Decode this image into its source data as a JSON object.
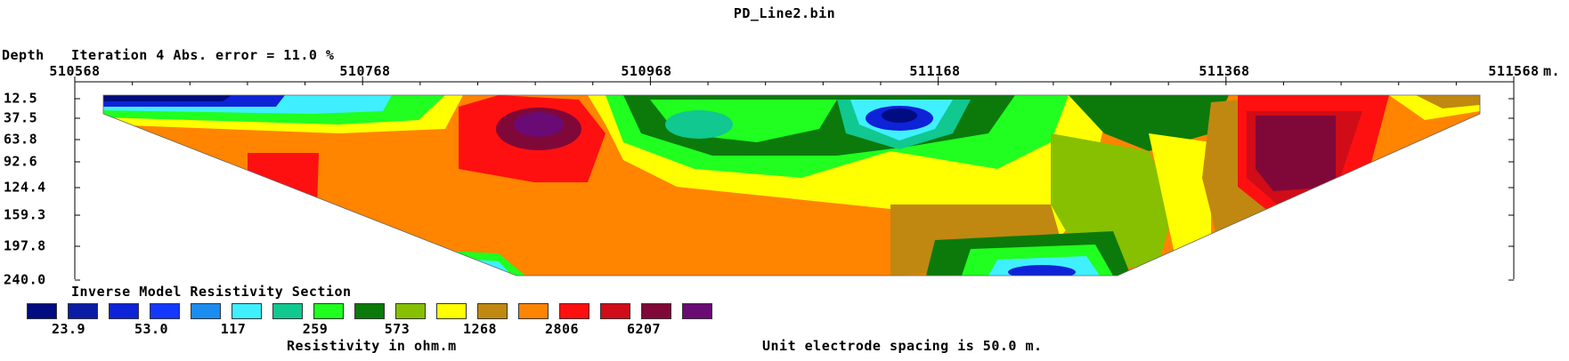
{
  "window": {
    "title": "PD_Line2.bin"
  },
  "header": {
    "depth_label": "Depth",
    "iteration_label": "Iteration 4 Abs. error = 11.0 %"
  },
  "legend": {
    "title": "Inverse Model Resistivity Section",
    "colors": [
      "#000c80",
      "#0a1ca6",
      "#0e22d8",
      "#1438ff",
      "#1b8cf0",
      "#40f0ff",
      "#10c890",
      "#20ff20",
      "#0b7a0b",
      "#86c000",
      "#ffff00",
      "#c08810",
      "#ff8400",
      "#ff1010",
      "#d00c18",
      "#800838",
      "#6a0a74"
    ],
    "labels": [
      "23.9",
      "53.0",
      "117",
      "259",
      "573",
      "1268",
      "2806",
      "6207"
    ],
    "unit_label": "Resistivity in ohm.m"
  },
  "footer": {
    "spacing_label": "Unit electrode spacing is 50.0 m."
  },
  "chart_data": {
    "type": "heatmap",
    "title": "PD_Line2.bin",
    "x_unit": "m.",
    "x_ticks": [
      "510568",
      "510768",
      "510968",
      "511168",
      "511368",
      "511568"
    ],
    "xlim": [
      510568,
      511568
    ],
    "y_ticks": [
      "12.5",
      "37.5",
      "63.8",
      "92.6",
      "124.4",
      "159.3",
      "197.8",
      "240.0"
    ],
    "ylabel": "Depth",
    "section_top_x": [
      510600,
      511538
    ],
    "section_bottom_x": [
      510800,
      511260
    ],
    "zones": [
      {
        "name": "left-shallow-low",
        "value": 30
      },
      {
        "name": "background",
        "value": 2806
      },
      {
        "name": "left-block",
        "value": 6207
      },
      {
        "name": "anomaly-1",
        "value": 12000
      },
      {
        "name": "green-zone",
        "value": 573
      },
      {
        "name": "anomaly-2",
        "value": 60
      },
      {
        "name": "yellow-zone",
        "value": 1268
      },
      {
        "name": "right-high",
        "value": 15000
      },
      {
        "name": "deep-low",
        "value": 60
      }
    ]
  }
}
